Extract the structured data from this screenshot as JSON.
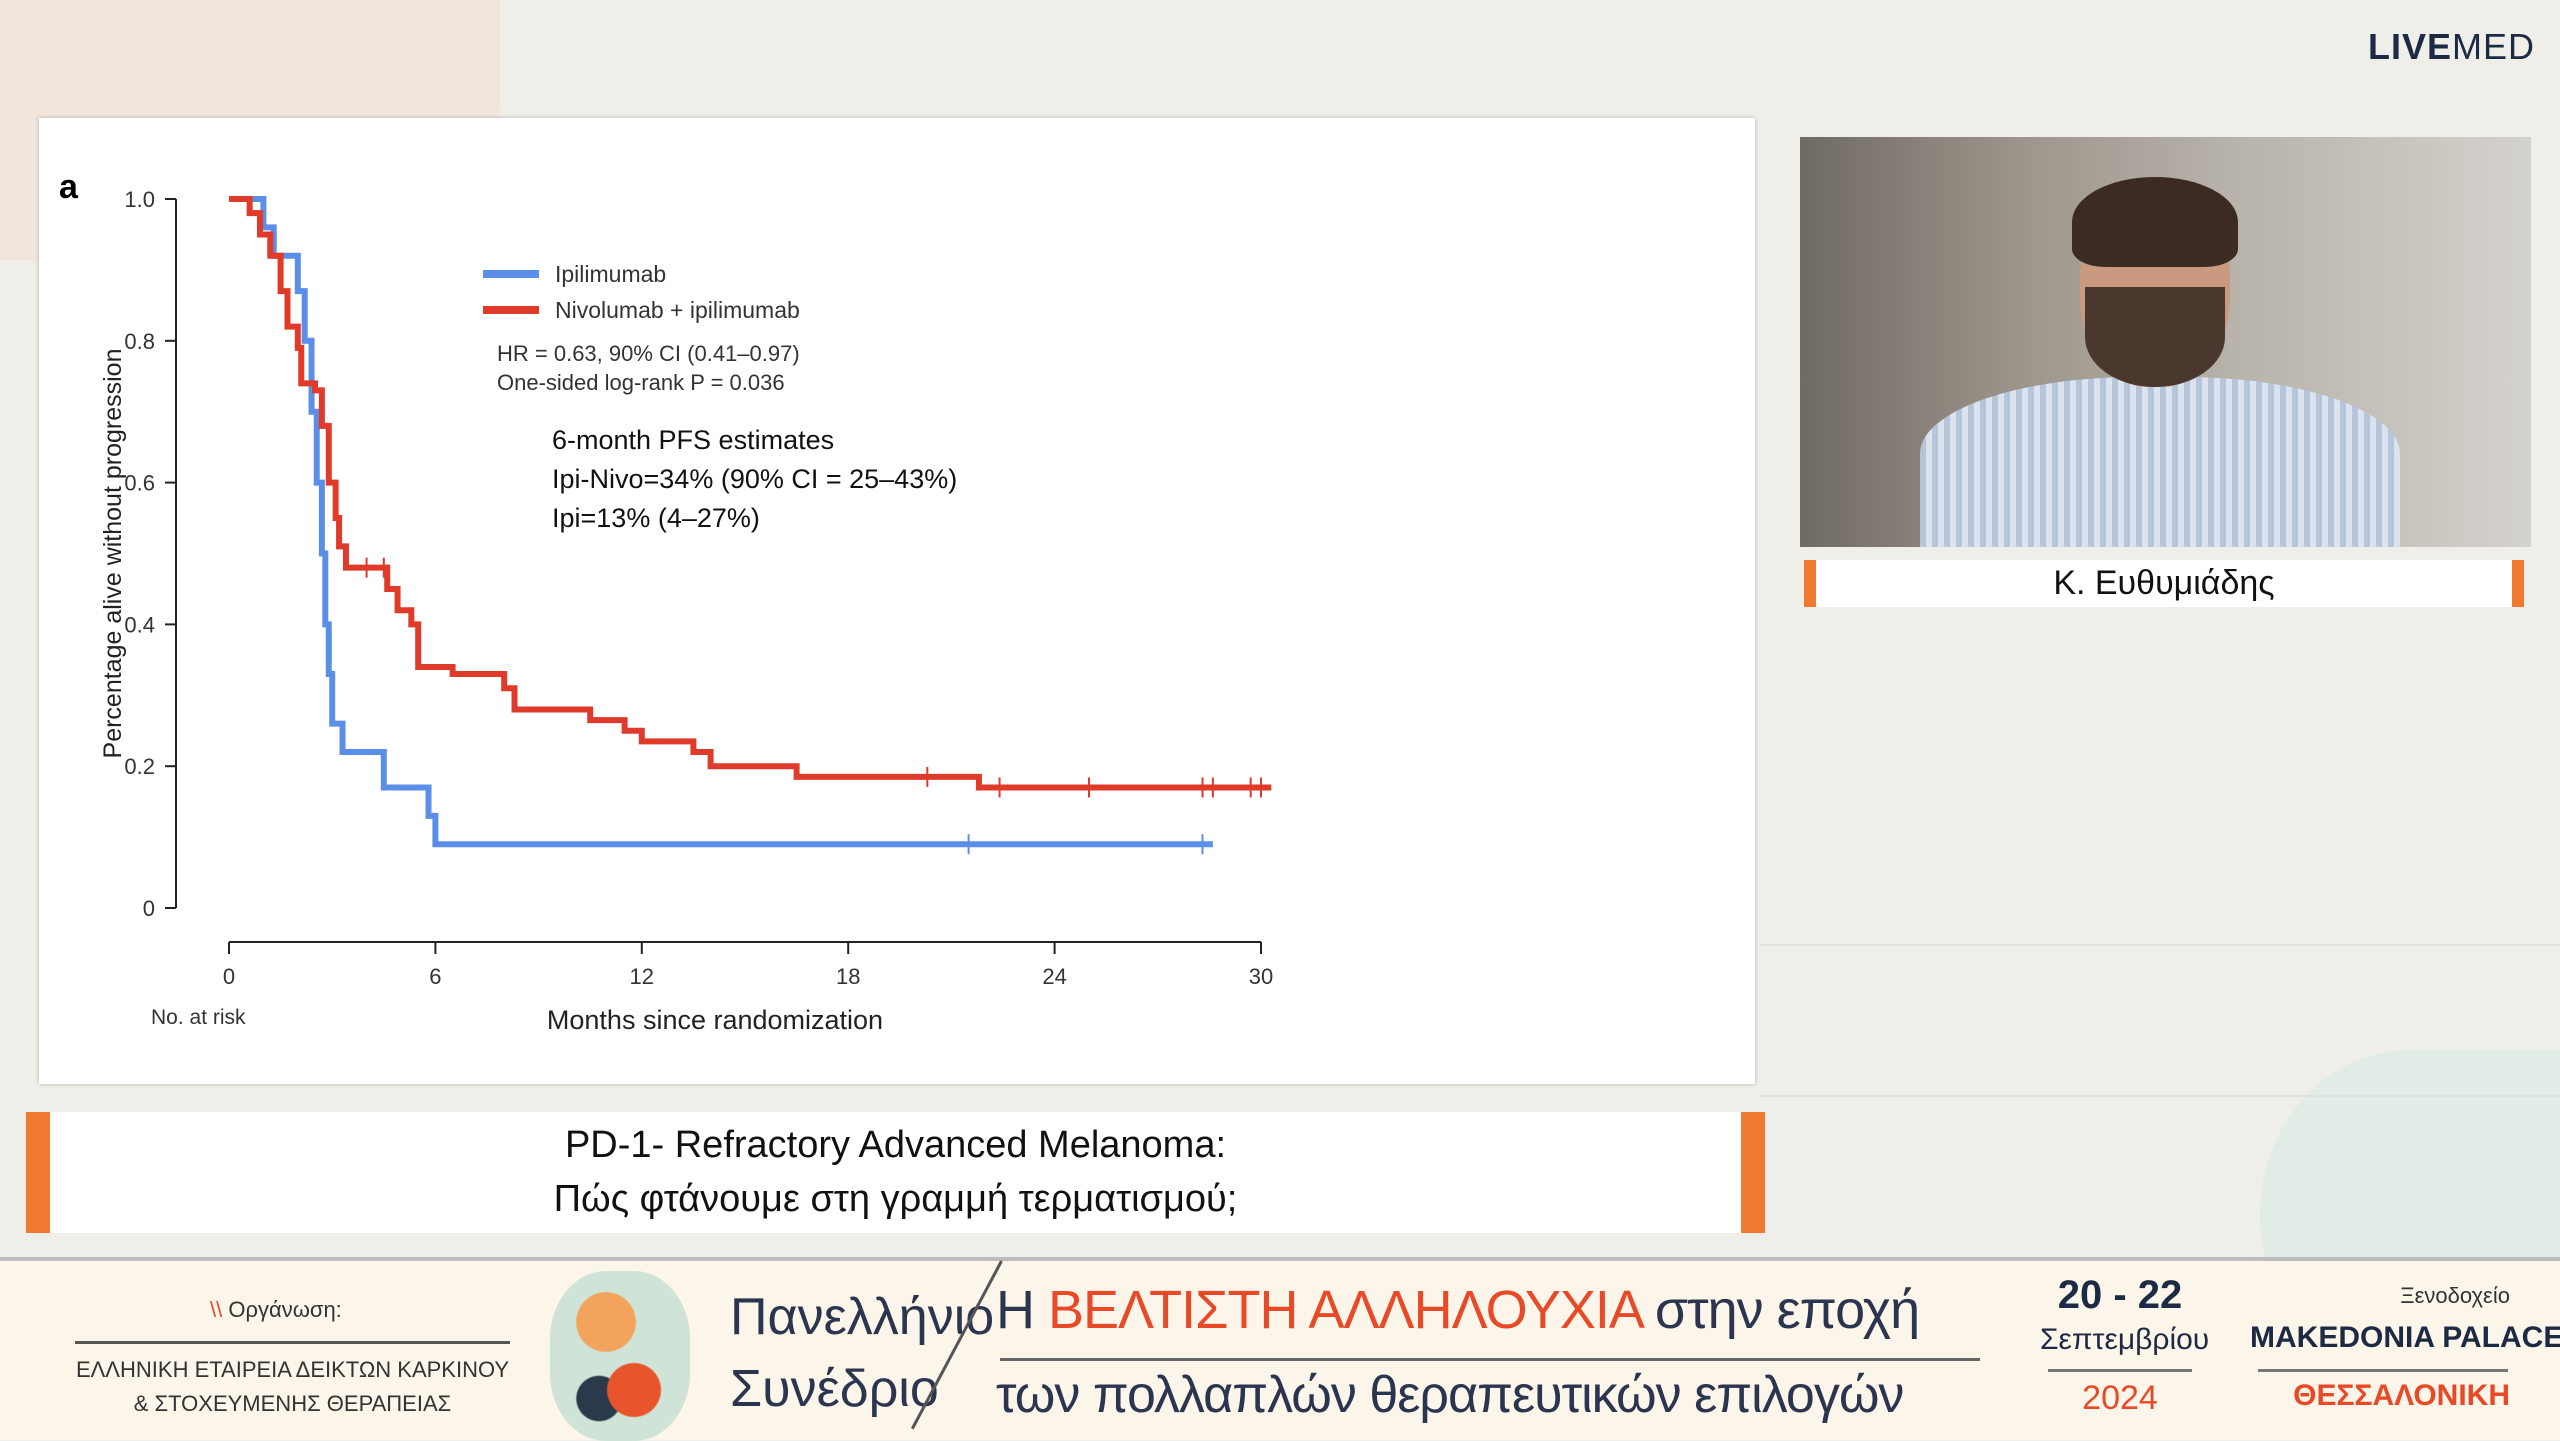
{
  "brand": {
    "logo_bold": "LIVE",
    "logo_light": "MED"
  },
  "slide": {
    "panel_label": "a",
    "annotations": {
      "hr": "HR = 0.63, 90% CI (0.41–0.97)",
      "logrank": "One-sided log-rank P = 0.036",
      "pfs_title": "6-month PFS estimates",
      "pfs_ipi_nivo": "Ipi-Nivo=34% (90% CI = 25–43%)",
      "pfs_ipi": "Ipi=13% (4–27%)"
    },
    "no_at_risk": "No. at risk"
  },
  "chart_data": {
    "type": "line",
    "subtype": "kaplan-meier step",
    "xlabel": "Months since randomization",
    "ylabel": "Percentage alive without progression",
    "xlim": [
      0,
      30
    ],
    "ylim": [
      0,
      1
    ],
    "xticks": [
      "0",
      "6",
      "12",
      "18",
      "24",
      "30"
    ],
    "yticks": [
      "0",
      "0.2",
      "0.4",
      "0.6",
      "0.8",
      "1.0"
    ],
    "legend_position": "top-center",
    "grid": false,
    "series": [
      {
        "name": "Ipilimumab",
        "color": "#5b8ee6",
        "steps": [
          [
            0,
            1.0
          ],
          [
            1.0,
            0.96
          ],
          [
            1.3,
            0.92
          ],
          [
            2.0,
            0.87
          ],
          [
            2.2,
            0.8
          ],
          [
            2.4,
            0.7
          ],
          [
            2.55,
            0.6
          ],
          [
            2.7,
            0.5
          ],
          [
            2.8,
            0.4
          ],
          [
            2.9,
            0.33
          ],
          [
            3.0,
            0.26
          ],
          [
            3.3,
            0.22
          ],
          [
            4.5,
            0.17
          ],
          [
            5.8,
            0.13
          ],
          [
            6.0,
            0.09
          ]
        ],
        "end": 28.6,
        "censored": [
          21.5,
          28.3
        ]
      },
      {
        "name": "Nivolumab + ipilimumab",
        "color": "#e03a2a",
        "steps": [
          [
            0,
            1.0
          ],
          [
            0.6,
            0.98
          ],
          [
            0.9,
            0.95
          ],
          [
            1.2,
            0.92
          ],
          [
            1.5,
            0.87
          ],
          [
            1.7,
            0.82
          ],
          [
            2.0,
            0.79
          ],
          [
            2.1,
            0.74
          ],
          [
            2.5,
            0.73
          ],
          [
            2.7,
            0.68
          ],
          [
            2.9,
            0.6
          ],
          [
            3.1,
            0.55
          ],
          [
            3.2,
            0.51
          ],
          [
            3.4,
            0.48
          ],
          [
            4.6,
            0.45
          ],
          [
            4.9,
            0.42
          ],
          [
            5.3,
            0.4
          ],
          [
            5.5,
            0.34
          ],
          [
            6.5,
            0.33
          ],
          [
            8.0,
            0.31
          ],
          [
            8.3,
            0.28
          ],
          [
            10.5,
            0.265
          ],
          [
            11.5,
            0.25
          ],
          [
            12.0,
            0.235
          ],
          [
            13.5,
            0.22
          ],
          [
            14.0,
            0.2
          ],
          [
            16.5,
            0.185
          ],
          [
            21.8,
            0.17
          ]
        ],
        "end": 30.3,
        "censored": [
          4.0,
          4.5,
          20.3,
          22.4,
          25.0,
          28.3,
          28.6,
          29.7,
          30.0
        ]
      }
    ]
  },
  "title": {
    "line1": "PD-1- Refractory Advanced Melanoma:",
    "line2": "Πώς φτάνουμε στη γραμμή τερματισμού;"
  },
  "speaker": {
    "name": "Κ. Ευθυμιάδης"
  },
  "banner": {
    "org_label": "Οργάνωση:",
    "org_name_1": "ΕΛΛΗΝΙΚΗ ΕΤΑΙΡΕΙΑ ΔΕΙΚΤΩΝ ΚΑΡΚΙΝΟΥ",
    "org_name_2": "& ΣΤΟΧΕΥΜΕΝΗΣ ΘΕΡΑΠΕΙΑΣ",
    "conf_1": "Πανελλήνιο",
    "conf_2": "Συνέδριο",
    "main_pre": "Η ",
    "main_highlight": "ΒΕΛΤΙΣΤΗ ΑΛΛΗΛΟΥΧΙΑ",
    "main_post": " στην εποχή",
    "main_2": "των πολλαπλών θεραπευτικών επιλογών",
    "dates": "20 - 22",
    "month": "Σεπτεμβρίου",
    "year": "2024",
    "hotel_label": "Ξενοδοχείο",
    "hotel": "MAKEDONIA PALACE",
    "city": "ΘΕΣΣΑΛΟΝΙΚΗ"
  }
}
